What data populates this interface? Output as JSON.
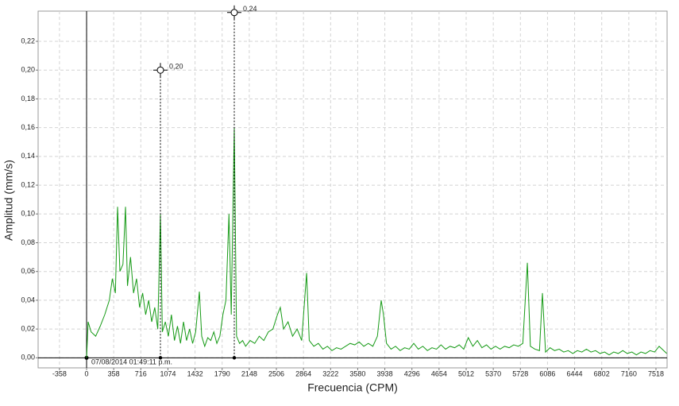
{
  "chart_data": {
    "type": "line",
    "xlabel": "Frecuencia (CPM)",
    "ylabel": "Amplitud (mm/s)",
    "annotation": "07/08/2014 01:49:11 p.m.",
    "xlim": [
      -640,
      7665
    ],
    "ylim": [
      -0.007,
      0.241
    ],
    "xticks": [
      -358,
      0,
      358,
      716,
      1074,
      1432,
      1790,
      2148,
      2506,
      2864,
      3222,
      3580,
      3938,
      4296,
      4654,
      5012,
      5370,
      5728,
      6086,
      6444,
      6802,
      7160,
      7518
    ],
    "yticks": [
      {
        "value": 0,
        "label": "0,00"
      },
      {
        "value": 0.02,
        "label": "0,02"
      },
      {
        "value": 0.04,
        "label": "0,04"
      },
      {
        "value": 0.06,
        "label": "0,06"
      },
      {
        "value": 0.08,
        "label": "0,08"
      },
      {
        "value": 0.1,
        "label": "0,10"
      },
      {
        "value": 0.12,
        "label": "0,12"
      },
      {
        "value": 0.14,
        "label": "0,14"
      },
      {
        "value": 0.16,
        "label": "0,16"
      },
      {
        "value": 0.18,
        "label": "0,18"
      },
      {
        "value": 0.2,
        "label": "0,20"
      },
      {
        "value": 0.22,
        "label": "0,22"
      }
    ],
    "grid": true,
    "x": [
      0,
      20,
      60,
      120,
      180,
      240,
      300,
      340,
      380,
      409,
      440,
      480,
      514,
      540,
      580,
      620,
      660,
      700,
      740,
      780,
      820,
      860,
      900,
      940,
      975,
      1000,
      1040,
      1080,
      1120,
      1160,
      1200,
      1240,
      1280,
      1320,
      1360,
      1400,
      1440,
      1489,
      1520,
      1560,
      1600,
      1640,
      1680,
      1720,
      1760,
      1800,
      1840,
      1880,
      1910,
      1950,
      1980,
      2020,
      2060,
      2100,
      2160,
      2220,
      2280,
      2340,
      2400,
      2460,
      2520,
      2558,
      2600,
      2660,
      2720,
      2780,
      2840,
      2905,
      2940,
      3000,
      3060,
      3120,
      3180,
      3240,
      3300,
      3360,
      3420,
      3480,
      3540,
      3600,
      3660,
      3720,
      3780,
      3840,
      3890,
      3920,
      3960,
      4020,
      4080,
      4140,
      4200,
      4260,
      4320,
      4380,
      4440,
      4500,
      4560,
      4620,
      4680,
      4740,
      4800,
      4860,
      4920,
      4980,
      5040,
      5100,
      5160,
      5220,
      5280,
      5340,
      5400,
      5460,
      5520,
      5580,
      5640,
      5700,
      5760,
      5820,
      5860,
      5920,
      5980,
      6019,
      6060,
      6120,
      6180,
      6240,
      6300,
      6360,
      6420,
      6480,
      6540,
      6600,
      6660,
      6720,
      6780,
      6840,
      6900,
      6960,
      7020,
      7080,
      7140,
      7200,
      7260,
      7320,
      7380,
      7440,
      7500,
      7560,
      7620,
      7660
    ],
    "series": [
      {
        "color": "#169a16",
        "values": [
          0.0,
          0.025,
          0.018,
          0.015,
          0.022,
          0.03,
          0.04,
          0.055,
          0.045,
          0.105,
          0.06,
          0.065,
          0.105,
          0.05,
          0.07,
          0.045,
          0.055,
          0.035,
          0.045,
          0.03,
          0.04,
          0.025,
          0.035,
          0.02,
          0.1,
          0.018,
          0.025,
          0.015,
          0.03,
          0.012,
          0.022,
          0.01,
          0.025,
          0.012,
          0.02,
          0.01,
          0.018,
          0.046,
          0.015,
          0.008,
          0.014,
          0.012,
          0.018,
          0.01,
          0.015,
          0.03,
          0.04,
          0.1,
          0.03,
          0.16,
          0.015,
          0.01,
          0.012,
          0.008,
          0.012,
          0.01,
          0.015,
          0.012,
          0.018,
          0.02,
          0.03,
          0.035,
          0.02,
          0.025,
          0.015,
          0.02,
          0.012,
          0.059,
          0.012,
          0.008,
          0.01,
          0.006,
          0.008,
          0.005,
          0.007,
          0.006,
          0.008,
          0.01,
          0.009,
          0.011,
          0.008,
          0.01,
          0.008,
          0.015,
          0.04,
          0.03,
          0.01,
          0.006,
          0.008,
          0.005,
          0.007,
          0.006,
          0.01,
          0.006,
          0.008,
          0.005,
          0.007,
          0.006,
          0.009,
          0.006,
          0.008,
          0.007,
          0.009,
          0.006,
          0.014,
          0.008,
          0.012,
          0.007,
          0.009,
          0.006,
          0.008,
          0.006,
          0.008,
          0.007,
          0.009,
          0.008,
          0.01,
          0.066,
          0.008,
          0.006,
          0.005,
          0.045,
          0.004,
          0.007,
          0.005,
          0.006,
          0.004,
          0.005,
          0.003,
          0.005,
          0.004,
          0.006,
          0.004,
          0.005,
          0.003,
          0.004,
          0.002,
          0.004,
          0.003,
          0.005,
          0.003,
          0.004,
          0.002,
          0.004,
          0.003,
          0.005,
          0.004,
          0.008,
          0.005,
          0.003
        ]
      }
    ],
    "cursors": {
      "x": [
        975,
        1950
      ],
      "values": [
        0.2,
        0.24
      ],
      "value_labels": [
        "0,20",
        "0,24"
      ]
    }
  }
}
